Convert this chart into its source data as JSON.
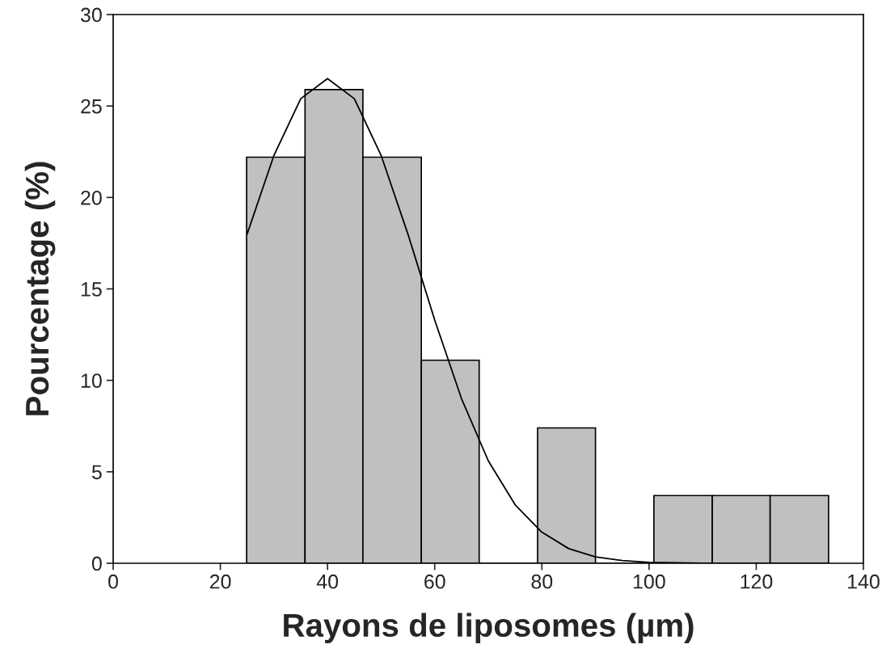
{
  "chart_data": {
    "type": "histogram",
    "xlabel": "Rayons de liposomes (µm)",
    "ylabel": "Pourcentage (%)",
    "bins": [
      24.9,
      35.8,
      46.6,
      57.5,
      68.3,
      79.2,
      90.0,
      100.9,
      111.8,
      122.6,
      133.5
    ],
    "values": [
      22.2,
      25.9,
      22.2,
      11.1,
      0,
      7.4,
      0,
      3.7,
      3.7,
      3.7
    ],
    "color": "#c0c0c0",
    "series": [
      {
        "type": "line",
        "color": "#000000",
        "x": [
          25,
          30,
          35,
          40,
          45,
          50,
          55,
          60,
          65,
          70,
          75,
          80,
          85,
          90,
          95,
          100,
          110,
          120,
          133.5
        ],
        "values": [
          18.0,
          22.3,
          25.4,
          26.5,
          25.4,
          22.3,
          18.0,
          13.3,
          9.0,
          5.6,
          3.2,
          1.7,
          0.8,
          0.35,
          0.15,
          0.05,
          0,
          0,
          0
        ]
      }
    ],
    "xlim": [
      0,
      140
    ],
    "xticks": [
      0,
      20,
      40,
      60,
      80,
      100,
      120,
      140
    ],
    "ylim": [
      0,
      30
    ],
    "yticks": [
      0,
      5,
      10,
      15,
      20,
      25,
      30
    ],
    "grid": false,
    "legend": false
  }
}
